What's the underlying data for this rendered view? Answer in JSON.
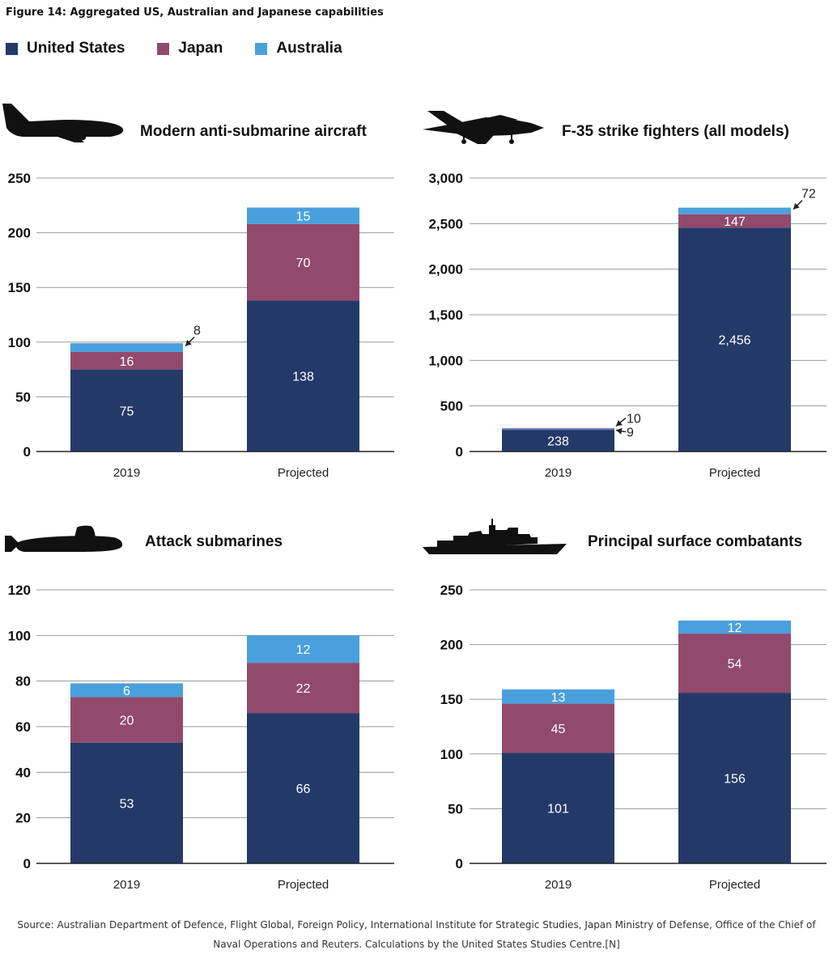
{
  "figure_title": "Figure 14: Aggregated US, Australian and Japanese capabilities",
  "colors": {
    "United States": "#233a69",
    "Japan": "#924a6c",
    "Australia": "#4aa0dc",
    "icon": "#111111"
  },
  "legend": [
    {
      "name": "United States",
      "color": "#233a69"
    },
    {
      "name": "Japan",
      "color": "#924a6c"
    },
    {
      "name": "Australia",
      "color": "#4aa0dc"
    }
  ],
  "chart_data": [
    {
      "type": "bar",
      "stacked": true,
      "title": "Modern anti-submarine aircraft",
      "icon": "maritime-patrol-aircraft-icon",
      "categories": [
        "2019",
        "Projected"
      ],
      "series": [
        {
          "name": "United States",
          "values": [
            75,
            138
          ]
        },
        {
          "name": "Japan",
          "values": [
            16,
            70
          ]
        },
        {
          "name": "Australia",
          "values": [
            8,
            15
          ]
        }
      ],
      "ylim": [
        0,
        250
      ],
      "yticks": [
        0,
        50,
        100,
        150,
        200,
        250
      ],
      "ytick_labels": [
        "0",
        "50",
        "100",
        "150",
        "200",
        "250"
      ],
      "value_labels": [
        [
          "75",
          "16",
          "8"
        ],
        [
          "138",
          "70",
          "15"
        ]
      ],
      "grid": true
    },
    {
      "type": "bar",
      "stacked": true,
      "title": "F-35 strike fighters (all models)",
      "icon": "fighter-jet-icon",
      "categories": [
        "2019",
        "Projected"
      ],
      "series": [
        {
          "name": "United States",
          "values": [
            238,
            2456
          ]
        },
        {
          "name": "Japan",
          "values": [
            9,
            147
          ]
        },
        {
          "name": "Australia",
          "values": [
            10,
            72
          ]
        }
      ],
      "ylim": [
        0,
        3000
      ],
      "yticks": [
        0,
        500,
        1000,
        1500,
        2000,
        2500,
        3000
      ],
      "ytick_labels": [
        "0",
        "500",
        "1,000",
        "1,500",
        "2,000",
        "2,500",
        "3,000"
      ],
      "value_labels": [
        [
          "238",
          "9",
          "10"
        ],
        [
          "2,456",
          "147",
          "72"
        ]
      ],
      "grid": true
    },
    {
      "type": "bar",
      "stacked": true,
      "title": "Attack submarines",
      "icon": "submarine-icon",
      "categories": [
        "2019",
        "Projected"
      ],
      "series": [
        {
          "name": "United States",
          "values": [
            53,
            66
          ]
        },
        {
          "name": "Japan",
          "values": [
            20,
            22
          ]
        },
        {
          "name": "Australia",
          "values": [
            6,
            12
          ]
        }
      ],
      "ylim": [
        0,
        120
      ],
      "yticks": [
        0,
        20,
        40,
        60,
        80,
        100,
        120
      ],
      "ytick_labels": [
        "0",
        "20",
        "40",
        "60",
        "80",
        "100",
        "120"
      ],
      "value_labels": [
        [
          "53",
          "20",
          "6"
        ],
        [
          "66",
          "22",
          "12"
        ]
      ],
      "grid": true
    },
    {
      "type": "bar",
      "stacked": true,
      "title": "Principal surface combatants",
      "icon": "warship-icon",
      "categories": [
        "2019",
        "Projected"
      ],
      "series": [
        {
          "name": "United States",
          "values": [
            101,
            156
          ]
        },
        {
          "name": "Japan",
          "values": [
            45,
            54
          ]
        },
        {
          "name": "Australia",
          "values": [
            13,
            12
          ]
        }
      ],
      "ylim": [
        0,
        250
      ],
      "yticks": [
        0,
        50,
        100,
        150,
        200,
        250
      ],
      "ytick_labels": [
        "0",
        "50",
        "100",
        "150",
        "200",
        "250"
      ],
      "value_labels": [
        [
          "101",
          "45",
          "13"
        ],
        [
          "156",
          "54",
          "12"
        ]
      ],
      "grid": true
    }
  ],
  "source_line1": "Source: Australian Department of Defence, Flight Global, Foreign Policy, International Institute for Strategic Studies, Japan Ministry of Defense, Office of the Chief of",
  "source_line2": "Naval Operations and Reuters. Calculations by the United States Studies Centre.[N]"
}
